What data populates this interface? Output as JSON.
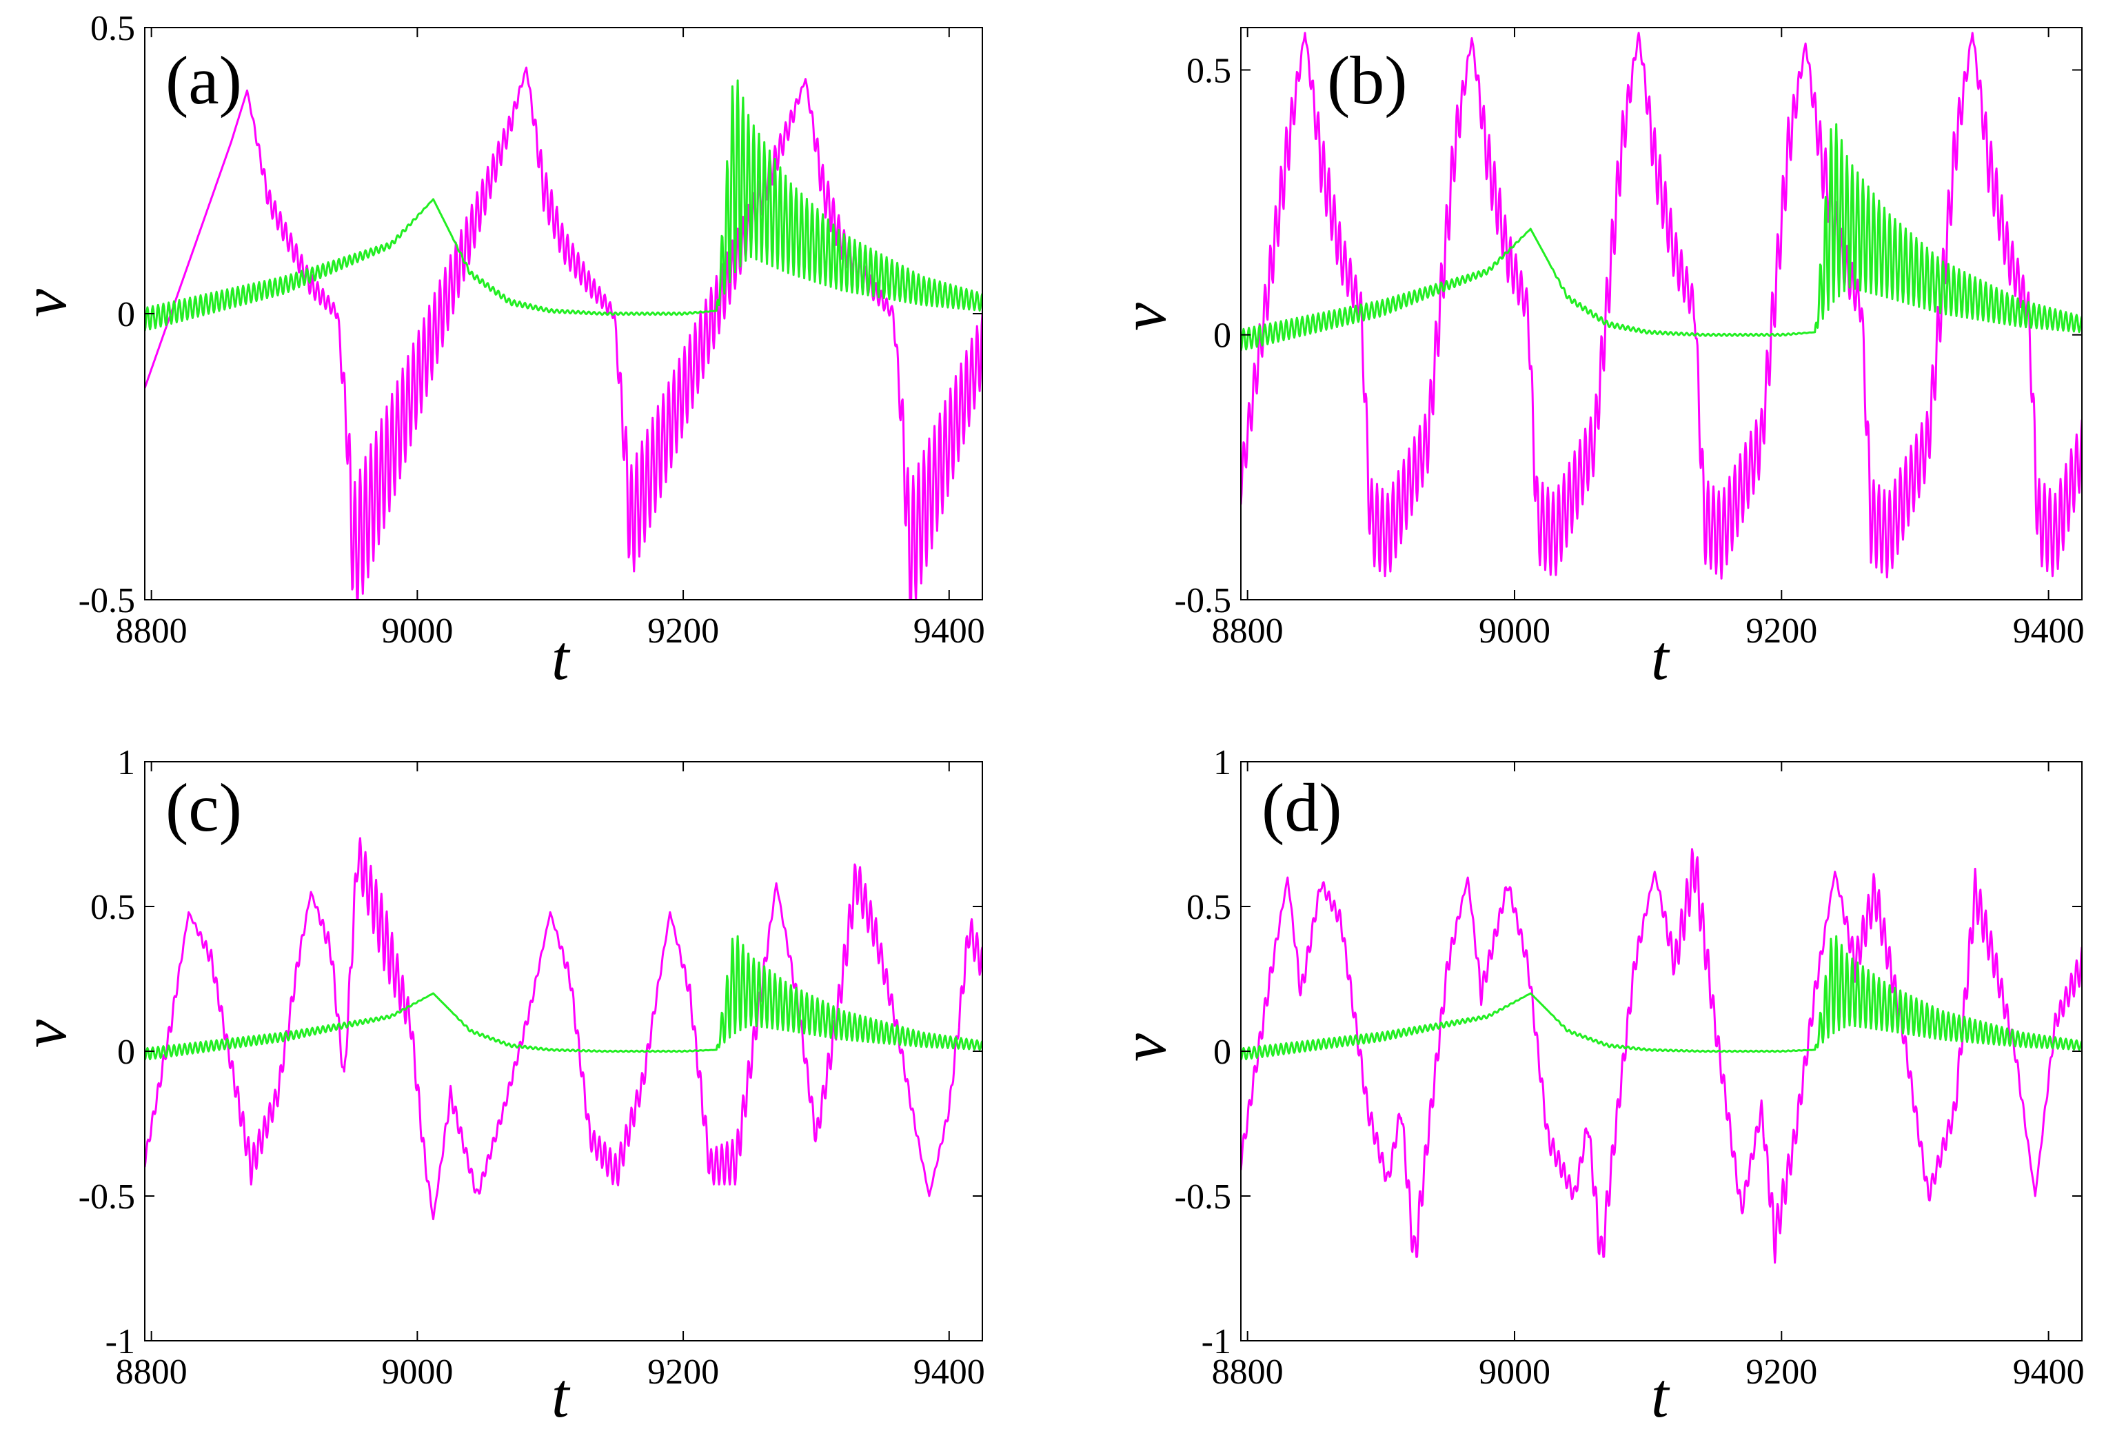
{
  "figure": {
    "colors": {
      "driven": "#ff00ff",
      "reference": "#22ee22",
      "frame": "#000000"
    }
  },
  "chart_data": [
    {
      "type": "line",
      "panel_label": "(a)",
      "xlabel": "t",
      "ylabel": "v",
      "xlim": [
        8795,
        9425
      ],
      "ylim": [
        -0.5,
        0.5
      ],
      "xticks": [
        8800,
        9000,
        9200,
        9400
      ],
      "xtick_labels": [
        "8800",
        "9000",
        "9200",
        "9400"
      ],
      "yticks": [
        -0.5,
        0,
        0.5
      ],
      "ytick_labels": [
        "-0.5",
        "0",
        "0.5"
      ],
      "series": [
        {
          "name": "magenta",
          "color": "#ff00ff",
          "oscillation_period": 4,
          "x": [
            8795,
            8860,
            8872,
            8888,
            8905,
            8920,
            8940,
            8947,
            8952,
            9070,
            9082,
            9095,
            9110,
            9130,
            9148,
            9155,
            9160,
            9280,
            9292,
            9305,
            9320,
            9340,
            9358,
            9365,
            9370,
            9425
          ],
          "y": [
            -0.13,
            0.3,
            0.39,
            0.2,
            0.12,
            0.05,
            0.0,
            -0.2,
            -0.42,
            0.33,
            0.43,
            0.22,
            0.12,
            0.05,
            0.0,
            -0.2,
            -0.37,
            0.33,
            0.41,
            0.22,
            0.12,
            0.05,
            0.0,
            -0.2,
            -0.42,
            -0.06
          ],
          "band": [
            0,
            0,
            0,
            0.02,
            0.02,
            0.02,
            0.01,
            0.05,
            0.12,
            0.02,
            0,
            0.04,
            0.03,
            0.02,
            0.01,
            0.05,
            0.1,
            0.02,
            0,
            0.04,
            0.03,
            0.02,
            0.01,
            0.05,
            0.12,
            0.06
          ]
        },
        {
          "name": "green",
          "color": "#22ee22",
          "oscillation_period": 4,
          "x": [
            8795,
            8900,
            8980,
            9012,
            9025,
            9040,
            9070,
            9100,
            9140,
            9200,
            9225,
            9238,
            9250,
            9280,
            9320,
            9380,
            9425
          ],
          "y": [
            -0.01,
            0.05,
            0.12,
            0.2,
            0.14,
            0.07,
            0.02,
            0.005,
            0.0,
            0.0,
            0.005,
            0.25,
            0.22,
            0.15,
            0.09,
            0.04,
            0.02
          ],
          "band": [
            0.02,
            0.015,
            0.005,
            0,
            0,
            0.005,
            0.005,
            0.003,
            0.002,
            0.002,
            0,
            0.18,
            0.12,
            0.08,
            0.05,
            0.025,
            0.015
          ]
        }
      ]
    },
    {
      "type": "line",
      "panel_label": "(b)",
      "xlabel": "t",
      "ylabel": "v",
      "xlim": [
        8795,
        9425
      ],
      "ylim": [
        -0.5,
        0.58
      ],
      "xticks": [
        8800,
        9000,
        9200,
        9400
      ],
      "xtick_labels": [
        "8800",
        "9000",
        "9200",
        "9400"
      ],
      "yticks": [
        -0.5,
        0,
        0.5
      ],
      "ytick_labels": [
        "-0.5",
        "0",
        "0.5"
      ],
      "series": [
        {
          "name": "magenta",
          "color": "#ff00ff",
          "oscillation_period": 4,
          "x": [
            8795,
            8830,
            8843,
            8855,
            8870,
            8885,
            8892,
            8905,
            8935,
            8955,
            8968,
            8980,
            8995,
            9010,
            9017,
            9030,
            9060,
            9080,
            9093,
            9105,
            9120,
            9135,
            9142,
            9155,
            9185,
            9205,
            9218,
            9230,
            9245,
            9260,
            9267,
            9280,
            9310,
            9330,
            9343,
            9355,
            9370,
            9385,
            9392,
            9405,
            9425
          ],
          "y": [
            -0.28,
            0.35,
            0.57,
            0.33,
            0.15,
            0.05,
            -0.35,
            -0.38,
            -0.2,
            0.35,
            0.56,
            0.33,
            0.15,
            0.05,
            -0.35,
            -0.38,
            -0.2,
            0.35,
            0.57,
            0.33,
            0.15,
            0.05,
            -0.35,
            -0.38,
            -0.2,
            0.35,
            0.55,
            0.33,
            0.15,
            0.05,
            -0.35,
            -0.38,
            -0.2,
            0.35,
            0.57,
            0.33,
            0.15,
            0.05,
            -0.35,
            -0.38,
            -0.22
          ],
          "band": [
            0.04,
            0.06,
            0,
            0.06,
            0.05,
            0.03,
            0.08,
            0.08,
            0.06,
            0.06,
            0,
            0.06,
            0.05,
            0.03,
            0.08,
            0.08,
            0.06,
            0.06,
            0,
            0.06,
            0.05,
            0.03,
            0.08,
            0.08,
            0.06,
            0.06,
            0,
            0.06,
            0.05,
            0.03,
            0.08,
            0.08,
            0.06,
            0.06,
            0,
            0.06,
            0.05,
            0.03,
            0.08,
            0.08,
            0.06
          ]
        },
        {
          "name": "green",
          "color": "#22ee22",
          "oscillation_period": 4,
          "x": [
            8795,
            8900,
            8980,
            9012,
            9025,
            9040,
            9070,
            9100,
            9140,
            9200,
            9225,
            9238,
            9250,
            9280,
            9320,
            9380,
            9425
          ],
          "y": [
            -0.01,
            0.05,
            0.12,
            0.2,
            0.14,
            0.07,
            0.02,
            0.005,
            0.0,
            0.0,
            0.005,
            0.24,
            0.21,
            0.15,
            0.09,
            0.04,
            0.02
          ],
          "band": [
            0.02,
            0.015,
            0.005,
            0,
            0,
            0.005,
            0.005,
            0.003,
            0.002,
            0.002,
            0,
            0.18,
            0.12,
            0.08,
            0.05,
            0.025,
            0.015
          ]
        }
      ]
    },
    {
      "type": "line",
      "panel_label": "(c)",
      "xlabel": "t",
      "ylabel": "v",
      "xlim": [
        8795,
        9425
      ],
      "ylim": [
        -1,
        1
      ],
      "xticks": [
        8800,
        9000,
        9200,
        9400
      ],
      "xtick_labels": [
        "8800",
        "9000",
        "9200",
        "9400"
      ],
      "yticks": [
        -1,
        -0.5,
        0,
        0.5,
        1
      ],
      "ytick_labels": [
        "-1",
        "-0.5",
        "0",
        "0.5",
        "1"
      ],
      "series": [
        {
          "name": "magenta",
          "color": "#ff00ff",
          "oscillation_period": 4,
          "x": [
            8795,
            8815,
            8828,
            8845,
            8858,
            8875,
            8895,
            8910,
            8920,
            8935,
            8945,
            8955,
            8975,
            8995,
            9005,
            9012,
            9025,
            9045,
            9065,
            9085,
            9100,
            9115,
            9130,
            9150,
            9170,
            9190,
            9205,
            9220,
            9240,
            9260,
            9270,
            9285,
            9300,
            9315,
            9330,
            9345,
            9360,
            9372,
            9385,
            9400,
            9415,
            9425
          ],
          "y": [
            -0.38,
            0.1,
            0.48,
            0.32,
            0.0,
            -0.4,
            -0.15,
            0.3,
            0.55,
            0.35,
            -0.1,
            0.68,
            0.4,
            0.1,
            -0.35,
            -0.58,
            -0.15,
            -0.5,
            -0.2,
            0.15,
            0.48,
            0.25,
            -0.3,
            -0.42,
            -0.1,
            0.48,
            0.2,
            -0.4,
            -0.38,
            0.25,
            0.58,
            0.2,
            -0.3,
            0.1,
            0.6,
            0.4,
            0.1,
            -0.2,
            -0.5,
            -0.2,
            0.42,
            0.3
          ],
          "band": [
            0.02,
            0.03,
            0,
            0.03,
            0.03,
            0.06,
            0.04,
            0.03,
            0,
            0.04,
            0.03,
            0.08,
            0.12,
            0.05,
            0.04,
            0,
            0.03,
            0.02,
            0.02,
            0.02,
            0,
            0.03,
            0.04,
            0.06,
            0.04,
            0,
            0.03,
            0.06,
            0.08,
            0.04,
            0,
            0.03,
            0.04,
            0.06,
            0.08,
            0.06,
            0.03,
            0.02,
            0,
            0.02,
            0.06,
            0.06
          ]
        },
        {
          "name": "green",
          "color": "#22ee22",
          "oscillation_period": 4,
          "x": [
            8795,
            8900,
            8980,
            9012,
            9025,
            9040,
            9070,
            9100,
            9140,
            9200,
            9225,
            9238,
            9250,
            9280,
            9320,
            9380,
            9425
          ],
          "y": [
            -0.01,
            0.05,
            0.12,
            0.2,
            0.14,
            0.07,
            0.02,
            0.005,
            0.0,
            0.0,
            0.005,
            0.24,
            0.21,
            0.15,
            0.09,
            0.04,
            0.02
          ],
          "band": [
            0.02,
            0.015,
            0.005,
            0,
            0,
            0.005,
            0.005,
            0.003,
            0.002,
            0.002,
            0,
            0.18,
            0.12,
            0.08,
            0.05,
            0.025,
            0.015
          ]
        }
      ]
    },
    {
      "type": "line",
      "panel_label": "(d)",
      "xlabel": "t",
      "ylabel": "v",
      "xlim": [
        8795,
        9425
      ],
      "ylim": [
        -1,
        1
      ],
      "xticks": [
        8800,
        9000,
        9200,
        9400
      ],
      "xtick_labels": [
        "8800",
        "9000",
        "9200",
        "9400"
      ],
      "yticks": [
        -1,
        -0.5,
        0,
        0.5,
        1
      ],
      "ytick_labels": [
        "-1",
        "-0.5",
        "0",
        "0.5",
        "1"
      ],
      "series": [
        {
          "name": "magenta",
          "color": "#ff00ff",
          "oscillation_period": 4,
          "x": [
            8795,
            8815,
            8830,
            8840,
            8855,
            8870,
            8890,
            8905,
            8915,
            8925,
            8935,
            8950,
            8965,
            8975,
            8995,
            9010,
            9025,
            9045,
            9055,
            9065,
            9075,
            9090,
            9105,
            9120,
            9135,
            9150,
            9170,
            9185,
            9195,
            9210,
            9225,
            9240,
            9255,
            9270,
            9290,
            9310,
            9330,
            9345,
            9360,
            9375,
            9390,
            9405,
            9425
          ],
          "y": [
            -0.38,
            0.2,
            0.6,
            0.2,
            0.58,
            0.45,
            -0.2,
            -0.45,
            -0.2,
            -0.72,
            -0.3,
            0.3,
            0.6,
            0.2,
            0.58,
            0.3,
            -0.3,
            -0.5,
            -0.25,
            -0.72,
            -0.3,
            0.3,
            0.62,
            0.3,
            0.65,
            0.1,
            -0.55,
            -0.2,
            -0.65,
            -0.3,
            0.2,
            0.62,
            0.3,
            0.55,
            0.1,
            -0.5,
            -0.2,
            0.55,
            0.3,
            0.0,
            -0.5,
            0.1,
            0.3
          ],
          "band": [
            0.03,
            0.04,
            0,
            0.04,
            0.02,
            0.03,
            0.04,
            0.03,
            0.03,
            0.08,
            0.05,
            0.04,
            0,
            0.04,
            0.02,
            0.03,
            0.04,
            0.03,
            0.03,
            0.08,
            0.05,
            0.04,
            0,
            0.06,
            0.1,
            0.05,
            0.03,
            0.03,
            0.08,
            0.05,
            0.04,
            0,
            0.06,
            0.08,
            0.04,
            0.03,
            0.04,
            0.08,
            0.06,
            0.03,
            0,
            0.03,
            0.06
          ]
        },
        {
          "name": "green",
          "color": "#22ee22",
          "oscillation_period": 4,
          "x": [
            8795,
            8900,
            8980,
            9012,
            9025,
            9040,
            9070,
            9100,
            9140,
            9200,
            9225,
            9238,
            9250,
            9280,
            9320,
            9380,
            9425
          ],
          "y": [
            -0.01,
            0.05,
            0.12,
            0.2,
            0.14,
            0.07,
            0.02,
            0.005,
            0.0,
            0.0,
            0.005,
            0.24,
            0.21,
            0.15,
            0.09,
            0.04,
            0.02
          ],
          "band": [
            0.02,
            0.015,
            0.005,
            0,
            0,
            0.005,
            0.005,
            0.003,
            0.002,
            0.002,
            0,
            0.18,
            0.12,
            0.08,
            0.05,
            0.025,
            0.015
          ]
        }
      ]
    }
  ]
}
